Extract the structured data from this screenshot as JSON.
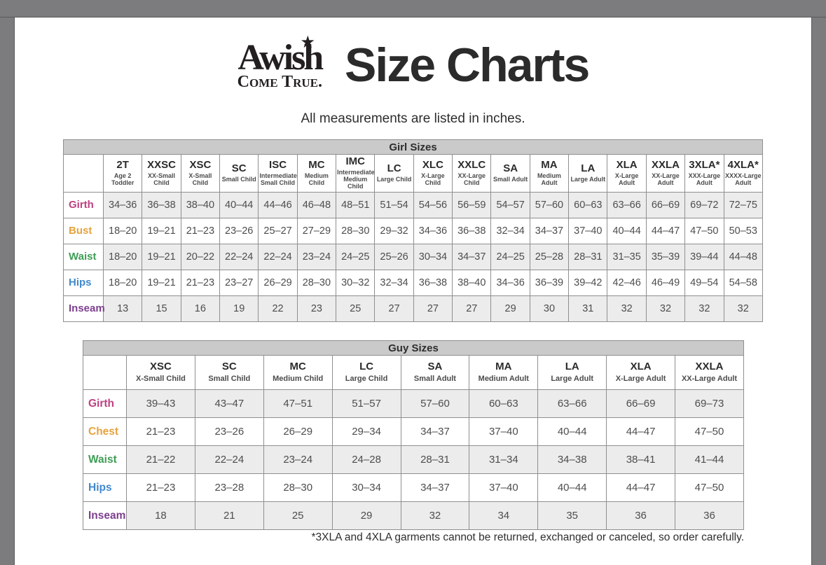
{
  "header": {
    "logo_line1": "Awish",
    "logo_line2": "Come True.",
    "title": "Size Charts",
    "subtitle": "All measurements are listed in inches."
  },
  "girl_table": {
    "title": "Girl Sizes",
    "columns": [
      {
        "code": "2T",
        "desc": "Age 2 Toddler"
      },
      {
        "code": "XXSC",
        "desc": "XX-Small Child"
      },
      {
        "code": "XSC",
        "desc": "X-Small Child"
      },
      {
        "code": "SC",
        "desc": "Small Child"
      },
      {
        "code": "ISC",
        "desc": "Intermediate Small Child"
      },
      {
        "code": "MC",
        "desc": "Medium Child"
      },
      {
        "code": "IMC",
        "desc": "Intermediate Medium Child"
      },
      {
        "code": "LC",
        "desc": "Large Child"
      },
      {
        "code": "XLC",
        "desc": "X-Large Child"
      },
      {
        "code": "XXLC",
        "desc": "XX-Large Child"
      },
      {
        "code": "SA",
        "desc": "Small Adult"
      },
      {
        "code": "MA",
        "desc": "Medium Adult"
      },
      {
        "code": "LA",
        "desc": "Large Adult"
      },
      {
        "code": "XLA",
        "desc": "X-Large Adult"
      },
      {
        "code": "XXLA",
        "desc": "XX-Large Adult"
      },
      {
        "code": "3XLA*",
        "desc": "XXX-Large Adult"
      },
      {
        "code": "4XLA*",
        "desc": "XXXX-Large Adult"
      }
    ],
    "rows": [
      {
        "label": "Girth",
        "color": "#bf4080",
        "values": [
          "34–36",
          "36–38",
          "38–40",
          "40–44",
          "44–46",
          "46–48",
          "48–51",
          "51–54",
          "54–56",
          "56–59",
          "54–57",
          "57–60",
          "60–63",
          "63–66",
          "66–69",
          "69–72",
          "72–75"
        ]
      },
      {
        "label": "Bust",
        "color": "#e8a33c",
        "values": [
          "18–20",
          "19–21",
          "21–23",
          "23–26",
          "25–27",
          "27–29",
          "28–30",
          "29–32",
          "34–36",
          "36–38",
          "32–34",
          "34–37",
          "37–40",
          "40–44",
          "44–47",
          "47–50",
          "50–53"
        ]
      },
      {
        "label": "Waist",
        "color": "#3e9e55",
        "values": [
          "18–20",
          "19–21",
          "20–22",
          "22–24",
          "22–24",
          "23–24",
          "24–25",
          "25–26",
          "30–34",
          "34–37",
          "24–25",
          "25–28",
          "28–31",
          "31–35",
          "35–39",
          "39–44",
          "44–48"
        ]
      },
      {
        "label": "Hips",
        "color": "#4189cd",
        "values": [
          "18–20",
          "19–21",
          "21–23",
          "23–27",
          "26–29",
          "28–30",
          "30–32",
          "32–34",
          "36–38",
          "38–40",
          "34–36",
          "36–39",
          "39–42",
          "42–46",
          "46–49",
          "49–54",
          "54–58"
        ]
      },
      {
        "label": "Inseam",
        "color": "#7d3f8f",
        "values": [
          "13",
          "15",
          "16",
          "19",
          "22",
          "23",
          "25",
          "27",
          "27",
          "27",
          "29",
          "30",
          "31",
          "32",
          "32",
          "32",
          "32"
        ]
      }
    ]
  },
  "guy_table": {
    "title": "Guy Sizes",
    "columns": [
      {
        "code": "XSC",
        "desc": "X-Small Child"
      },
      {
        "code": "SC",
        "desc": "Small Child"
      },
      {
        "code": "MC",
        "desc": "Medium Child"
      },
      {
        "code": "LC",
        "desc": "Large Child"
      },
      {
        "code": "SA",
        "desc": "Small Adult"
      },
      {
        "code": "MA",
        "desc": "Medium Adult"
      },
      {
        "code": "LA",
        "desc": "Large Adult"
      },
      {
        "code": "XLA",
        "desc": "X-Large Adult"
      },
      {
        "code": "XXLA",
        "desc": "XX-Large Adult"
      }
    ],
    "rows": [
      {
        "label": "Girth",
        "color": "#bf4080",
        "values": [
          "39–43",
          "43–47",
          "47–51",
          "51–57",
          "57–60",
          "60–63",
          "63–66",
          "66–69",
          "69–73"
        ]
      },
      {
        "label": "Chest",
        "color": "#e8a33c",
        "values": [
          "21–23",
          "23–26",
          "26–29",
          "29–34",
          "34–37",
          "37–40",
          "40–44",
          "44–47",
          "47–50"
        ]
      },
      {
        "label": "Waist",
        "color": "#3e9e55",
        "values": [
          "21–22",
          "22–24",
          "23–24",
          "24–28",
          "28–31",
          "31–34",
          "34–38",
          "38–41",
          "41–44"
        ]
      },
      {
        "label": "Hips",
        "color": "#4189cd",
        "values": [
          "21–23",
          "23–28",
          "28–30",
          "30–34",
          "34–37",
          "37–40",
          "40–44",
          "44–47",
          "47–50"
        ]
      },
      {
        "label": "Inseam",
        "color": "#7d3f8f",
        "values": [
          "18",
          "21",
          "25",
          "29",
          "32",
          "34",
          "35",
          "36",
          "36"
        ]
      }
    ]
  },
  "footnote": "*3XLA and 4XLA garments cannot be returned, exchanged or canceled, so order carefully."
}
